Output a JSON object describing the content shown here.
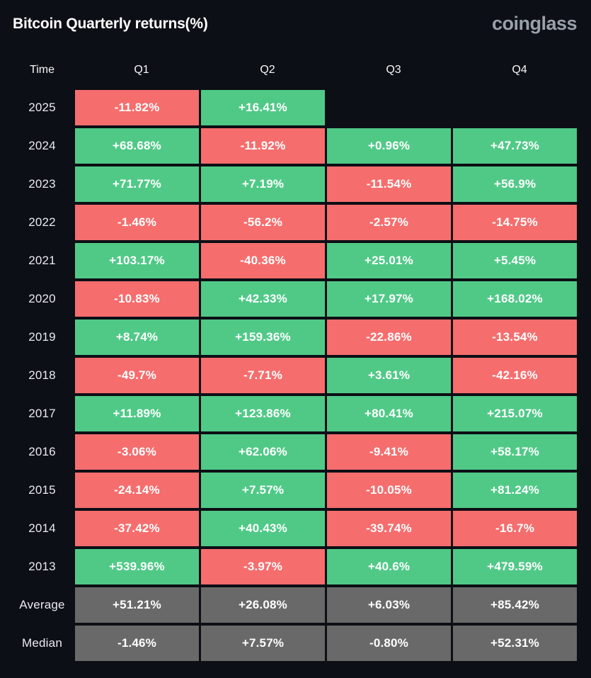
{
  "header": {
    "title": "Bitcoin Quarterly returns(%)",
    "logo": "coinglass"
  },
  "colors": {
    "positive": "#50c987",
    "negative": "#f66d6d",
    "neutral": "#696969",
    "background": "#0c0f15"
  },
  "table": {
    "columns": [
      "Time",
      "Q1",
      "Q2",
      "Q3",
      "Q4"
    ],
    "rows": [
      {
        "label": "2025",
        "cells": [
          {
            "text": "-11.82%",
            "type": "negative"
          },
          {
            "text": "+16.41%",
            "type": "positive"
          },
          {
            "text": "",
            "type": "empty"
          },
          {
            "text": "",
            "type": "empty"
          }
        ]
      },
      {
        "label": "2024",
        "cells": [
          {
            "text": "+68.68%",
            "type": "positive"
          },
          {
            "text": "-11.92%",
            "type": "negative"
          },
          {
            "text": "+0.96%",
            "type": "positive"
          },
          {
            "text": "+47.73%",
            "type": "positive"
          }
        ]
      },
      {
        "label": "2023",
        "cells": [
          {
            "text": "+71.77%",
            "type": "positive"
          },
          {
            "text": "+7.19%",
            "type": "positive"
          },
          {
            "text": "-11.54%",
            "type": "negative"
          },
          {
            "text": "+56.9%",
            "type": "positive"
          }
        ]
      },
      {
        "label": "2022",
        "cells": [
          {
            "text": "-1.46%",
            "type": "negative"
          },
          {
            "text": "-56.2%",
            "type": "negative"
          },
          {
            "text": "-2.57%",
            "type": "negative"
          },
          {
            "text": "-14.75%",
            "type": "negative"
          }
        ]
      },
      {
        "label": "2021",
        "cells": [
          {
            "text": "+103.17%",
            "type": "positive"
          },
          {
            "text": "-40.36%",
            "type": "negative"
          },
          {
            "text": "+25.01%",
            "type": "positive"
          },
          {
            "text": "+5.45%",
            "type": "positive"
          }
        ]
      },
      {
        "label": "2020",
        "cells": [
          {
            "text": "-10.83%",
            "type": "negative"
          },
          {
            "text": "+42.33%",
            "type": "positive"
          },
          {
            "text": "+17.97%",
            "type": "positive"
          },
          {
            "text": "+168.02%",
            "type": "positive"
          }
        ]
      },
      {
        "label": "2019",
        "cells": [
          {
            "text": "+8.74%",
            "type": "positive"
          },
          {
            "text": "+159.36%",
            "type": "positive"
          },
          {
            "text": "-22.86%",
            "type": "negative"
          },
          {
            "text": "-13.54%",
            "type": "negative"
          }
        ]
      },
      {
        "label": "2018",
        "cells": [
          {
            "text": "-49.7%",
            "type": "negative"
          },
          {
            "text": "-7.71%",
            "type": "negative"
          },
          {
            "text": "+3.61%",
            "type": "positive"
          },
          {
            "text": "-42.16%",
            "type": "negative"
          }
        ]
      },
      {
        "label": "2017",
        "cells": [
          {
            "text": "+11.89%",
            "type": "positive"
          },
          {
            "text": "+123.86%",
            "type": "positive"
          },
          {
            "text": "+80.41%",
            "type": "positive"
          },
          {
            "text": "+215.07%",
            "type": "positive"
          }
        ]
      },
      {
        "label": "2016",
        "cells": [
          {
            "text": "-3.06%",
            "type": "negative"
          },
          {
            "text": "+62.06%",
            "type": "positive"
          },
          {
            "text": "-9.41%",
            "type": "negative"
          },
          {
            "text": "+58.17%",
            "type": "positive"
          }
        ]
      },
      {
        "label": "2015",
        "cells": [
          {
            "text": "-24.14%",
            "type": "negative"
          },
          {
            "text": "+7.57%",
            "type": "positive"
          },
          {
            "text": "-10.05%",
            "type": "negative"
          },
          {
            "text": "+81.24%",
            "type": "positive"
          }
        ]
      },
      {
        "label": "2014",
        "cells": [
          {
            "text": "-37.42%",
            "type": "negative"
          },
          {
            "text": "+40.43%",
            "type": "positive"
          },
          {
            "text": "-39.74%",
            "type": "negative"
          },
          {
            "text": "-16.7%",
            "type": "negative"
          }
        ]
      },
      {
        "label": "2013",
        "cells": [
          {
            "text": "+539.96%",
            "type": "positive"
          },
          {
            "text": "-3.97%",
            "type": "negative"
          },
          {
            "text": "+40.6%",
            "type": "positive"
          },
          {
            "text": "+479.59%",
            "type": "positive"
          }
        ]
      },
      {
        "label": "Average",
        "cells": [
          {
            "text": "+51.21%",
            "type": "neutral"
          },
          {
            "text": "+26.08%",
            "type": "neutral"
          },
          {
            "text": "+6.03%",
            "type": "neutral"
          },
          {
            "text": "+85.42%",
            "type": "neutral"
          }
        ]
      },
      {
        "label": "Median",
        "cells": [
          {
            "text": "-1.46%",
            "type": "neutral"
          },
          {
            "text": "+7.57%",
            "type": "neutral"
          },
          {
            "text": "-0.80%",
            "type": "neutral"
          },
          {
            "text": "+52.31%",
            "type": "neutral"
          }
        ]
      }
    ]
  },
  "chart_data": {
    "type": "heatmap",
    "title": "Bitcoin Quarterly returns(%)",
    "columns": [
      "Q1",
      "Q2",
      "Q3",
      "Q4"
    ],
    "rows": [
      "2025",
      "2024",
      "2023",
      "2022",
      "2021",
      "2020",
      "2019",
      "2018",
      "2017",
      "2016",
      "2015",
      "2014",
      "2013",
      "Average",
      "Median"
    ],
    "values": [
      [
        -11.82,
        16.41,
        null,
        null
      ],
      [
        68.68,
        -11.92,
        0.96,
        47.73
      ],
      [
        71.77,
        7.19,
        -11.54,
        56.9
      ],
      [
        -1.46,
        -56.2,
        -2.57,
        -14.75
      ],
      [
        103.17,
        -40.36,
        25.01,
        5.45
      ],
      [
        -10.83,
        42.33,
        17.97,
        168.02
      ],
      [
        8.74,
        159.36,
        -22.86,
        -13.54
      ],
      [
        -49.7,
        -7.71,
        3.61,
        -42.16
      ],
      [
        11.89,
        123.86,
        80.41,
        215.07
      ],
      [
        -3.06,
        62.06,
        -9.41,
        58.17
      ],
      [
        -24.14,
        7.57,
        -10.05,
        81.24
      ],
      [
        -37.42,
        40.43,
        -39.74,
        -16.7
      ],
      [
        539.96,
        -3.97,
        40.6,
        479.59
      ],
      [
        51.21,
        26.08,
        6.03,
        85.42
      ],
      [
        -1.46,
        7.57,
        -0.8,
        52.31
      ]
    ],
    "color_coding": {
      "positive": "#50c987",
      "negative": "#f66d6d",
      "summary": "#696969"
    },
    "legend": "none",
    "grid": "off"
  }
}
